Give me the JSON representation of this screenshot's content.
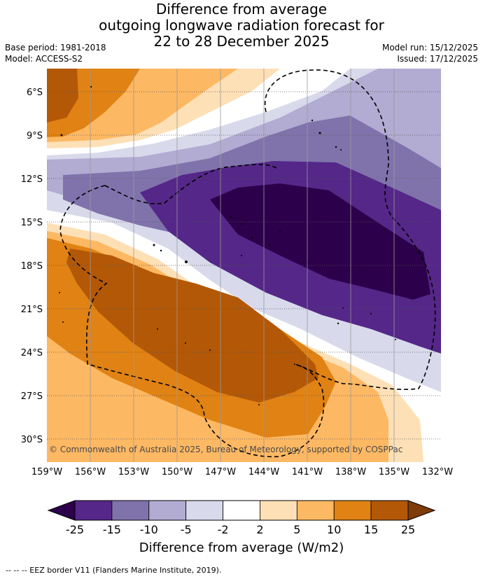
{
  "title": {
    "line1": "Difference from average",
    "line2": "outgoing longwave radiation forecast for",
    "line3": "22 to 28 December 2025"
  },
  "meta_left": {
    "base_period": "Base period: 1981-2018",
    "model": "Model: ACCESS-S2"
  },
  "meta_right": {
    "model_run": "Model run: 15/12/2025",
    "issued": "Issued: 17/12/2025"
  },
  "map": {
    "lat_labels": [
      "6°S",
      "9°S",
      "12°S",
      "15°S",
      "18°S",
      "21°S",
      "24°S",
      "27°S",
      "30°S"
    ],
    "lon_labels": [
      "159°W",
      "156°W",
      "153°W",
      "150°W",
      "147°W",
      "144°W",
      "141°W",
      "138°W",
      "135°W",
      "132°W"
    ],
    "copyright": "© Commonwealth of Australia 2025, Bureau of Meteorology, supported by COSPPac"
  },
  "legend": {
    "ticks": [
      "-25",
      "-15",
      "-10",
      "-5",
      "-2",
      "2",
      "5",
      "10",
      "15",
      "25"
    ],
    "colors": [
      "#2d004b",
      "#542788",
      "#8073ac",
      "#b2abd2",
      "#d8daeb",
      "#ffffff",
      "#fee0b6",
      "#fdb863",
      "#e08214",
      "#b35806",
      "#7f3b08"
    ],
    "label": "Difference from average (W/m2)"
  },
  "footer": {
    "eez_note": "-- -- -- EEZ border V11 (Flanders Marine Institute, 2019)."
  }
}
